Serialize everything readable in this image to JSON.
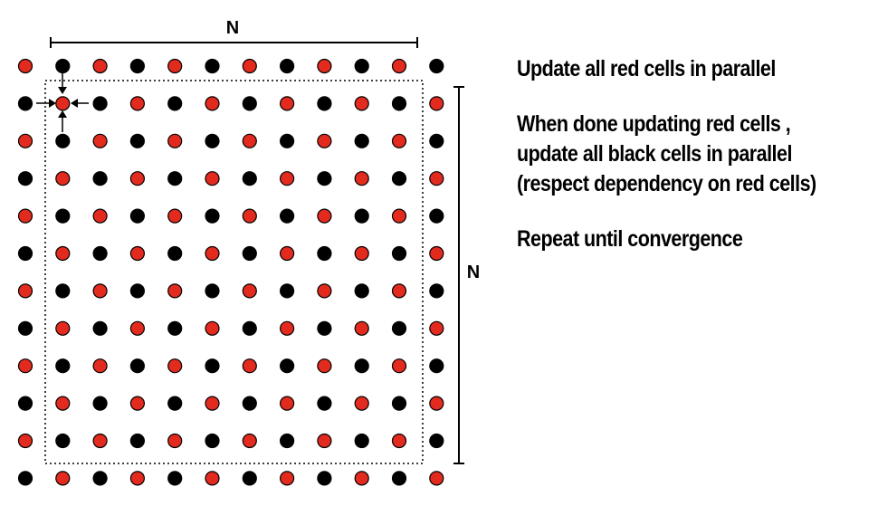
{
  "diagram": {
    "top_dimension_label": "N",
    "side_dimension_label": "N",
    "grid_rows": 12,
    "grid_cols": 12,
    "colors": {
      "red_cell": "#e22b1e",
      "black_cell": "#000000",
      "outline": "#000000",
      "background": "#ffffff"
    }
  },
  "notes": {
    "step1": "Update all red cells in parallel",
    "step2_line1": "When done updating red cells ,",
    "step2_line2": "update all black cells in parallel",
    "step2_line3": "(respect dependency on red cells)",
    "step3": "Repeat until convergence"
  }
}
